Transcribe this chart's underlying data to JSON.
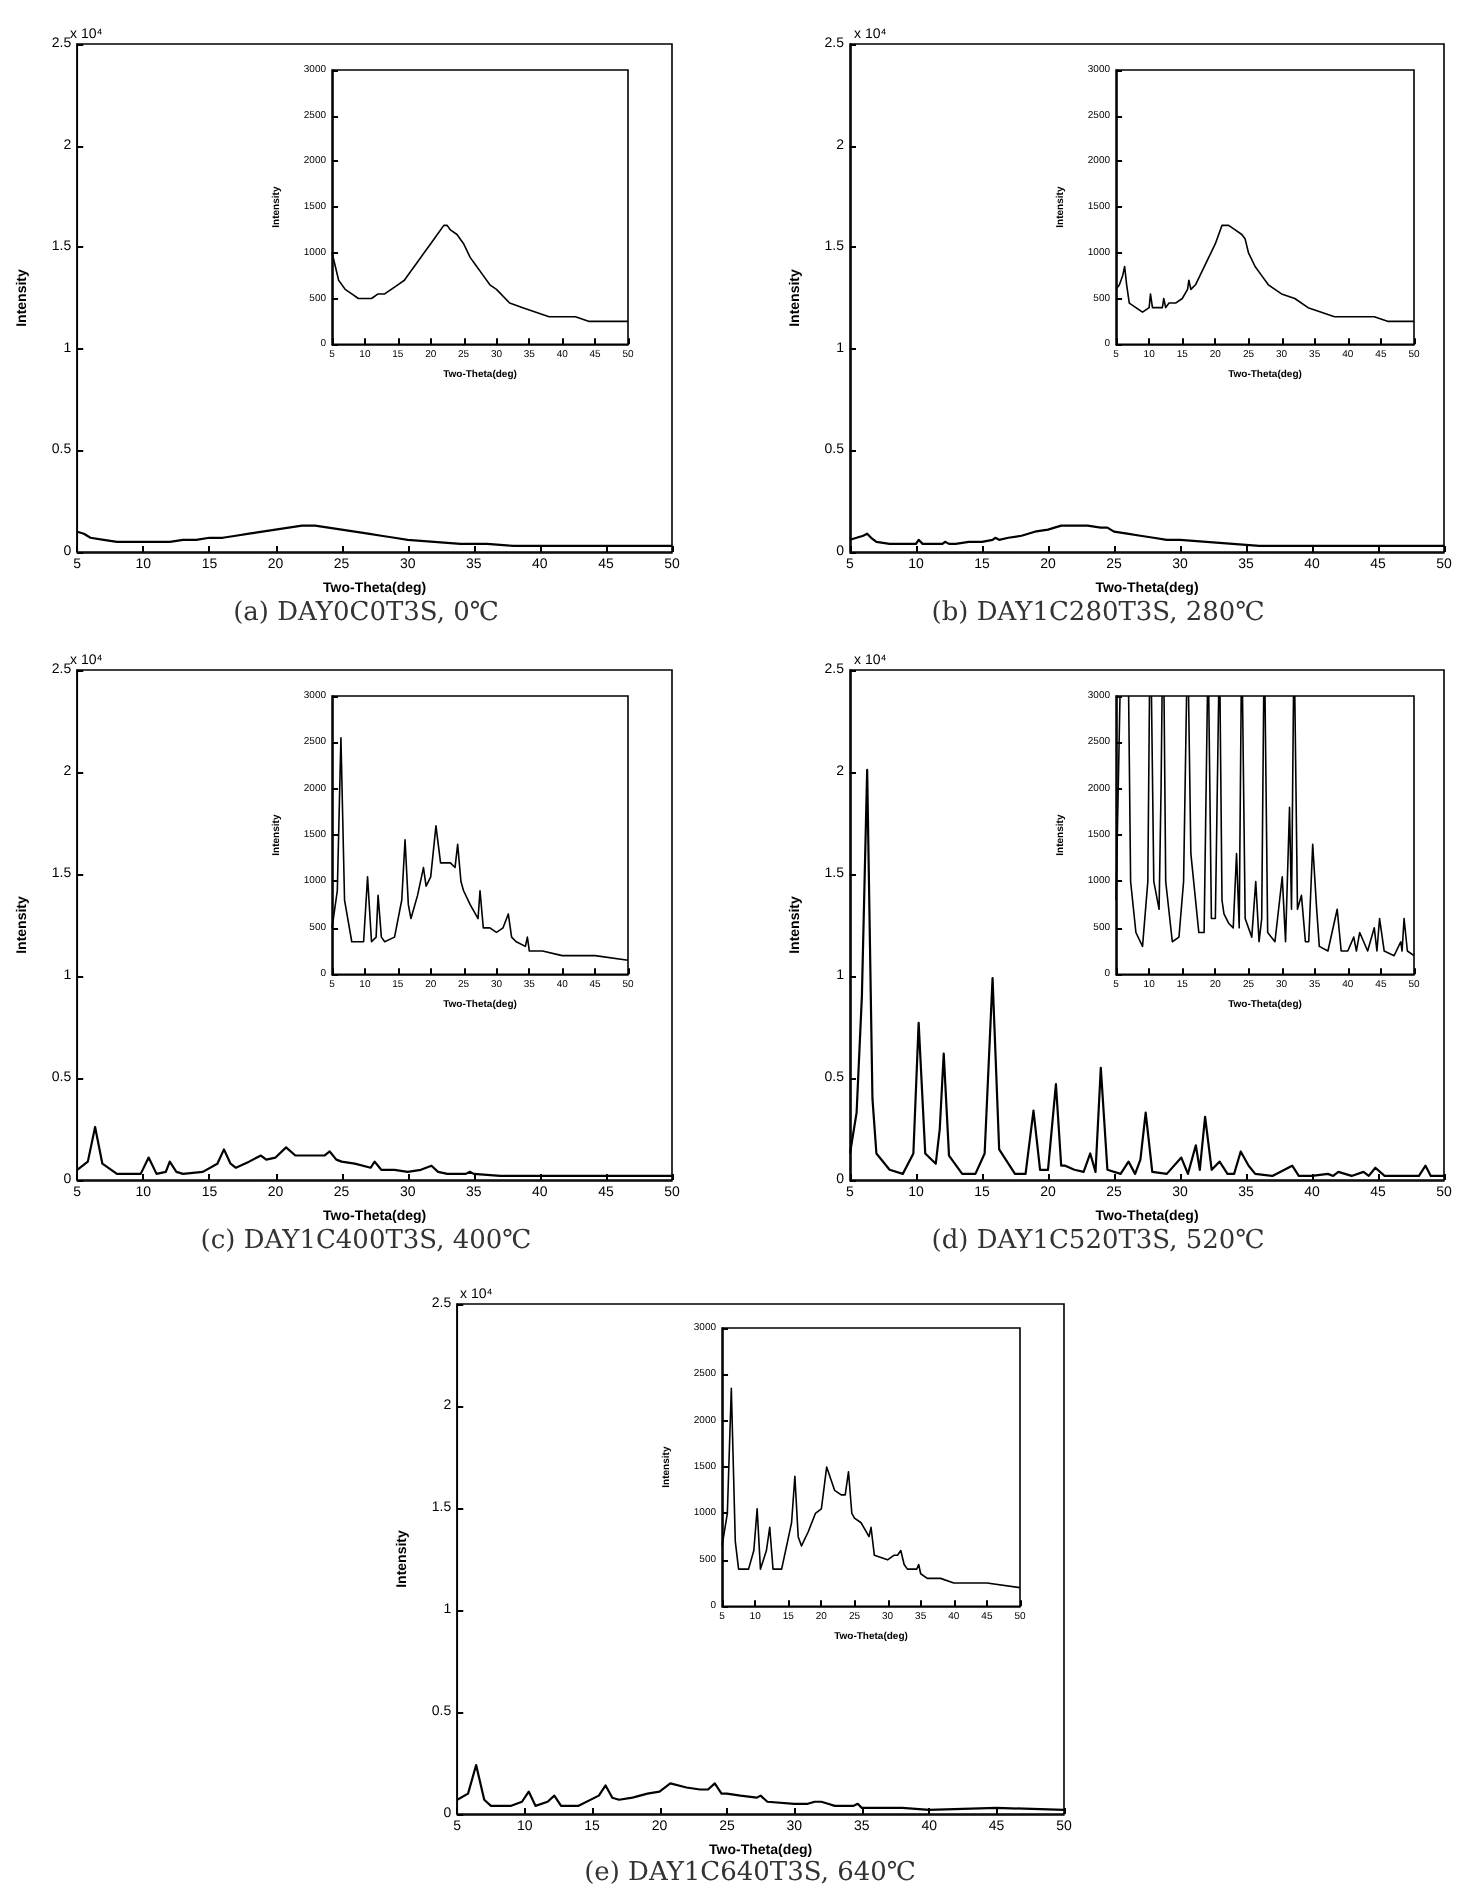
{
  "chart_data": [
    {
      "type": "line",
      "title": "(a) DAY0C0T3S, 0℃",
      "xlabel": "Two-Theta(deg)",
      "ylabel": "Intensity",
      "annotations": [
        "x 10⁴"
      ],
      "color": "#000000",
      "marker": "none",
      "xlim": [
        5,
        50
      ],
      "ylim": [
        0,
        2.5
      ],
      "xticks": [
        5,
        10,
        15,
        20,
        25,
        30,
        35,
        40,
        45,
        50
      ],
      "yticks": [
        0,
        0.5,
        1,
        1.5,
        2,
        2.5
      ],
      "x": [
        5,
        5.5,
        6,
        7,
        8,
        9,
        10,
        11,
        12,
        13,
        14,
        15,
        16,
        17,
        18,
        19,
        20,
        21,
        22,
        22.5,
        23,
        24,
        25,
        26,
        27,
        28,
        29,
        30,
        32,
        34,
        36,
        38,
        40,
        42,
        44,
        46,
        48,
        50
      ],
      "values": [
        0.1,
        0.09,
        0.07,
        0.06,
        0.05,
        0.05,
        0.05,
        0.05,
        0.05,
        0.06,
        0.06,
        0.07,
        0.07,
        0.08,
        0.09,
        0.1,
        0.11,
        0.12,
        0.13,
        0.13,
        0.13,
        0.12,
        0.11,
        0.1,
        0.09,
        0.08,
        0.07,
        0.06,
        0.05,
        0.04,
        0.04,
        0.03,
        0.03,
        0.03,
        0.03,
        0.03,
        0.03,
        0.03
      ]
    },
    {
      "type": "line",
      "xlabel": "Two-Theta(deg)",
      "ylabel": "Intensity",
      "color": "#000000",
      "marker": "none",
      "xlim": [
        5,
        50
      ],
      "ylim": [
        0,
        3000
      ],
      "xticks": [
        5,
        10,
        15,
        20,
        25,
        30,
        35,
        40,
        45,
        50
      ],
      "yticks": [
        0,
        500,
        1000,
        1500,
        2000,
        2500,
        3000
      ],
      "x": [
        5,
        5.5,
        6,
        7,
        8,
        9,
        10,
        11,
        12,
        13,
        14,
        15,
        16,
        17,
        18,
        19,
        20,
        21,
        22,
        22.5,
        23,
        24,
        25,
        26,
        27,
        28,
        29,
        30,
        32,
        34,
        36,
        38,
        40,
        42,
        44,
        46,
        48,
        50
      ],
      "values": [
        1000,
        850,
        700,
        600,
        550,
        500,
        500,
        500,
        550,
        550,
        600,
        650,
        700,
        800,
        900,
        1000,
        1100,
        1200,
        1300,
        1300,
        1250,
        1200,
        1100,
        950,
        850,
        750,
        650,
        600,
        450,
        400,
        350,
        300,
        300,
        300,
        250,
        250,
        250,
        250
      ]
    },
    {
      "type": "line",
      "title": "(b) DAY1C280T3S, 280℃",
      "xlabel": "Two-Theta(deg)",
      "ylabel": "Intensity",
      "annotations": [
        "x 10⁴"
      ],
      "color": "#000000",
      "marker": "none",
      "xlim": [
        5,
        50
      ],
      "ylim": [
        0,
        2.5
      ],
      "xticks": [
        5,
        10,
        15,
        20,
        25,
        30,
        35,
        40,
        45,
        50
      ],
      "yticks": [
        0,
        0.5,
        1,
        1.5,
        2,
        2.5
      ],
      "x": [
        5,
        5.5,
        6,
        6.3,
        6.6,
        7,
        8,
        9,
        10,
        10.2,
        10.5,
        11,
        12,
        12.2,
        12.5,
        13,
        14,
        15,
        15.8,
        16,
        16.3,
        17,
        18,
        19,
        20,
        21,
        22,
        23,
        24,
        24.5,
        25,
        26,
        27,
        28,
        29,
        30,
        32,
        34,
        36,
        38,
        40,
        42,
        44,
        46,
        48,
        50
      ],
      "values": [
        0.06,
        0.07,
        0.08,
        0.09,
        0.07,
        0.05,
        0.04,
        0.04,
        0.04,
        0.06,
        0.04,
        0.04,
        0.04,
        0.05,
        0.04,
        0.04,
        0.05,
        0.05,
        0.06,
        0.07,
        0.06,
        0.07,
        0.08,
        0.1,
        0.11,
        0.13,
        0.13,
        0.13,
        0.12,
        0.12,
        0.1,
        0.09,
        0.08,
        0.07,
        0.06,
        0.06,
        0.05,
        0.04,
        0.03,
        0.03,
        0.03,
        0.03,
        0.03,
        0.03,
        0.03,
        0.03
      ]
    },
    {
      "type": "line",
      "xlabel": "Two-Theta(deg)",
      "ylabel": "Intensity",
      "color": "#000000",
      "marker": "none",
      "xlim": [
        5,
        50
      ],
      "ylim": [
        0,
        3000
      ],
      "xticks": [
        5,
        10,
        15,
        20,
        25,
        30,
        35,
        40,
        45,
        50
      ],
      "yticks": [
        0,
        500,
        1000,
        1500,
        2000,
        2500,
        3000
      ],
      "x": [
        5,
        5.5,
        6,
        6.3,
        6.6,
        7,
        8,
        9,
        10,
        10.2,
        10.5,
        11,
        12,
        12.2,
        12.5,
        13,
        14,
        15,
        15.8,
        16,
        16.3,
        17,
        18,
        19,
        20,
        21,
        22,
        23,
        24,
        24.5,
        25,
        26,
        27,
        28,
        29,
        30,
        32,
        34,
        36,
        38,
        40,
        42,
        44,
        46,
        48,
        50
      ],
      "values": [
        600,
        650,
        750,
        850,
        650,
        450,
        400,
        350,
        400,
        550,
        400,
        400,
        400,
        500,
        400,
        450,
        450,
        500,
        600,
        700,
        600,
        650,
        800,
        950,
        1100,
        1300,
        1300,
        1250,
        1200,
        1150,
        1000,
        850,
        750,
        650,
        600,
        550,
        500,
        400,
        350,
        300,
        300,
        300,
        300,
        250,
        250,
        250
      ]
    },
    {
      "type": "line",
      "title": "(c) DAY1C400T3S, 400℃",
      "xlabel": "Two-Theta(deg)",
      "ylabel": "Intensity",
      "annotations": [
        "x 10⁴"
      ],
      "color": "#000000",
      "marker": "none",
      "xlim": [
        5,
        50
      ],
      "ylim": [
        0,
        2.5
      ],
      "xticks": [
        5,
        10,
        15,
        20,
        25,
        30,
        35,
        40,
        45,
        50
      ],
      "yticks": [
        0,
        0.5,
        1,
        1.5,
        2,
        2.5
      ],
      "x": [
        5,
        5.8,
        6.35,
        6.9,
        8,
        9.8,
        10.4,
        11,
        11.7,
        12,
        12.5,
        13,
        14.5,
        15.6,
        16.1,
        16.6,
        17,
        18,
        18.9,
        19.3,
        20,
        20.8,
        21.5,
        23,
        23.7,
        24.1,
        24.6,
        25,
        26,
        27.2,
        27.5,
        28,
        29,
        30,
        31,
        31.8,
        32.3,
        33,
        34.4,
        34.7,
        35,
        37,
        40,
        45,
        50
      ],
      "values": [
        0.05,
        0.09,
        0.26,
        0.08,
        0.03,
        0.03,
        0.11,
        0.03,
        0.04,
        0.09,
        0.04,
        0.03,
        0.04,
        0.08,
        0.15,
        0.08,
        0.06,
        0.09,
        0.12,
        0.1,
        0.11,
        0.16,
        0.12,
        0.12,
        0.12,
        0.14,
        0.1,
        0.09,
        0.08,
        0.06,
        0.09,
        0.05,
        0.05,
        0.04,
        0.05,
        0.07,
        0.04,
        0.03,
        0.03,
        0.04,
        0.03,
        0.02,
        0.02,
        0.02,
        0.02
      ]
    },
    {
      "type": "line",
      "xlabel": "Two-Theta(deg)",
      "ylabel": "Intensity",
      "color": "#000000",
      "marker": "none",
      "xlim": [
        5,
        50
      ],
      "ylim": [
        0,
        3000
      ],
      "xticks": [
        5,
        10,
        15,
        20,
        25,
        30,
        35,
        40,
        45,
        50
      ],
      "yticks": [
        0,
        500,
        1000,
        1500,
        2000,
        2500,
        3000
      ],
      "x": [
        5,
        5.8,
        6.35,
        6.9,
        8,
        9.8,
        10.4,
        11,
        11.7,
        12,
        12.5,
        13,
        14.5,
        15.6,
        16.1,
        16.6,
        17,
        18,
        18.9,
        19.3,
        20,
        20.8,
        21.5,
        23,
        23.7,
        24.1,
        24.6,
        25,
        26,
        27.2,
        27.5,
        28,
        29,
        30,
        31,
        31.8,
        32.3,
        33,
        34.4,
        34.7,
        35,
        37,
        40,
        45,
        50
      ],
      "values": [
        500,
        900,
        2550,
        800,
        350,
        350,
        1050,
        350,
        400,
        850,
        400,
        350,
        400,
        800,
        1450,
        750,
        600,
        850,
        1150,
        950,
        1050,
        1600,
        1200,
        1200,
        1150,
        1400,
        1000,
        900,
        750,
        600,
        900,
        500,
        500,
        450,
        500,
        650,
        400,
        350,
        300,
        400,
        250,
        250,
        200,
        200,
        150
      ]
    },
    {
      "type": "line",
      "title": "(d) DAY1C520T3S, 520℃",
      "xlabel": "Two-Theta(deg)",
      "ylabel": "Intensity",
      "annotations": [
        "x 10⁴"
      ],
      "color": "#000000",
      "marker": "none",
      "xlim": [
        5,
        50
      ],
      "ylim": [
        0,
        2.5
      ],
      "xticks": [
        5,
        10,
        15,
        20,
        25,
        30,
        35,
        40,
        45,
        50
      ],
      "yticks": [
        0,
        0.5,
        1,
        1.5,
        2,
        2.5
      ],
      "x": [
        5,
        5.5,
        5.9,
        6.3,
        6.7,
        7,
        8,
        9,
        9.8,
        10.2,
        10.7,
        11.5,
        11.8,
        12.1,
        12.5,
        13.5,
        14.5,
        15.2,
        15.8,
        16.3,
        17.5,
        18.3,
        18.9,
        19.4,
        20,
        20.6,
        21,
        21.3,
        22,
        22.7,
        23.2,
        23.6,
        24,
        24.5,
        25.5,
        26.1,
        26.6,
        27,
        27.4,
        27.9,
        29,
        30.1,
        30.6,
        31.2,
        31.5,
        31.9,
        32.4,
        33,
        33.6,
        34.1,
        34.6,
        35.2,
        35.7,
        37,
        38.5,
        39,
        40,
        41.2,
        41.6,
        42,
        43,
        43.9,
        44.3,
        44.8,
        45.5,
        47,
        48.1,
        48.6,
        49,
        50
      ],
      "values": [
        0.13,
        0.33,
        0.9,
        2.01,
        0.4,
        0.13,
        0.05,
        0.03,
        0.13,
        0.77,
        0.13,
        0.08,
        0.25,
        0.62,
        0.12,
        0.03,
        0.03,
        0.13,
        0.99,
        0.15,
        0.03,
        0.03,
        0.34,
        0.05,
        0.05,
        0.47,
        0.07,
        0.07,
        0.05,
        0.04,
        0.13,
        0.04,
        0.55,
        0.05,
        0.03,
        0.09,
        0.03,
        0.1,
        0.33,
        0.04,
        0.03,
        0.11,
        0.03,
        0.17,
        0.05,
        0.31,
        0.05,
        0.09,
        0.03,
        0.03,
        0.14,
        0.07,
        0.03,
        0.02,
        0.07,
        0.02,
        0.02,
        0.03,
        0.02,
        0.04,
        0.02,
        0.04,
        0.02,
        0.06,
        0.02,
        0.02,
        0.02,
        0.07,
        0.02,
        0.02
      ]
    },
    {
      "type": "line",
      "xlabel": "Two-Theta(deg)",
      "ylabel": "Intensity",
      "color": "#000000",
      "marker": "none",
      "xlim": [
        5,
        50
      ],
      "ylim": [
        0,
        3000
      ],
      "xticks": [
        5,
        10,
        15,
        20,
        25,
        30,
        35,
        40,
        45,
        50
      ],
      "yticks": [
        0,
        500,
        1000,
        1500,
        2000,
        2500,
        3000
      ],
      "x": [
        5,
        5.6,
        6.3,
        6.9,
        7.2,
        8,
        9,
        9.8,
        10.05,
        10.2,
        10.35,
        10.7,
        11.5,
        11.8,
        11.95,
        12.1,
        12.25,
        12.5,
        13.5,
        14.5,
        15.2,
        15.65,
        15.8,
        15.95,
        16.3,
        17.5,
        18.3,
        18.8,
        18.9,
        19,
        19.4,
        20,
        20.5,
        20.6,
        20.7,
        21,
        21.3,
        22,
        22.7,
        23.2,
        23.6,
        23.9,
        24,
        24.1,
        24.5,
        25.5,
        26.1,
        26.6,
        27,
        27.3,
        27.4,
        27.5,
        27.9,
        29,
        30.1,
        30.6,
        31.2,
        31.5,
        31.8,
        31.9,
        32,
        32.4,
        33,
        33.6,
        34.1,
        34.7,
        35.3,
        35.7,
        37,
        38.4,
        39,
        40,
        40.9,
        41.3,
        41.8,
        43,
        44,
        44.4,
        44.8,
        45.5,
        47,
        48,
        48.2,
        48.5,
        49,
        50
      ],
      "values": [
        800,
        3000,
        null,
        3000,
        1000,
        450,
        300,
        1000,
        3000,
        null,
        3000,
        1000,
        700,
        2000,
        3000,
        null,
        3000,
        1000,
        350,
        400,
        1000,
        3000,
        null,
        3000,
        1300,
        450,
        450,
        3000,
        null,
        3000,
        600,
        600,
        3000,
        null,
        3000,
        800,
        650,
        550,
        500,
        1300,
        500,
        3000,
        null,
        3000,
        600,
        400,
        1000,
        350,
        600,
        3000,
        null,
        3000,
        450,
        350,
        1050,
        350,
        1800,
        700,
        3000,
        null,
        3000,
        700,
        850,
        350,
        350,
        1400,
        700,
        300,
        250,
        700,
        250,
        250,
        400,
        250,
        450,
        250,
        500,
        250,
        600,
        250,
        200,
        350,
        250,
        600,
        250,
        200
      ]
    },
    {
      "type": "line",
      "title": "(e) DAY1C640T3S, 640℃",
      "xlabel": "Two-Theta(deg)",
      "ylabel": "Intensity",
      "annotations": [
        "x 10⁴"
      ],
      "color": "#000000",
      "marker": "none",
      "xlim": [
        5,
        50
      ],
      "ylim": [
        0,
        2.5
      ],
      "xticks": [
        5,
        10,
        15,
        20,
        25,
        30,
        35,
        40,
        45,
        50
      ],
      "yticks": [
        0,
        0.5,
        1,
        1.5,
        2,
        2.5
      ],
      "x": [
        5,
        5.8,
        6.4,
        7,
        7.5,
        9,
        9.8,
        10.3,
        10.8,
        11.7,
        12.2,
        12.7,
        14,
        15.5,
        16,
        16.5,
        17,
        18,
        19.1,
        20,
        20.8,
        22,
        23,
        23.6,
        24.1,
        24.6,
        25,
        26,
        27.2,
        27.5,
        28,
        30,
        31,
        31.5,
        32,
        32.5,
        33,
        34.4,
        34.7,
        35,
        36,
        38,
        40,
        45,
        50
      ],
      "values": [
        0.07,
        0.1,
        0.24,
        0.07,
        0.04,
        0.04,
        0.06,
        0.11,
        0.04,
        0.06,
        0.09,
        0.04,
        0.04,
        0.09,
        0.14,
        0.08,
        0.07,
        0.08,
        0.1,
        0.11,
        0.15,
        0.13,
        0.12,
        0.12,
        0.15,
        0.1,
        0.1,
        0.09,
        0.08,
        0.09,
        0.06,
        0.05,
        0.05,
        0.06,
        0.06,
        0.05,
        0.04,
        0.04,
        0.05,
        0.03,
        0.03,
        0.03,
        0.02,
        0.03,
        0.02
      ]
    },
    {
      "type": "line",
      "xlabel": "Two-Theta(deg)",
      "ylabel": "Intensity",
      "color": "#000000",
      "marker": "none",
      "xlim": [
        5,
        50
      ],
      "ylim": [
        0,
        3000
      ],
      "xticks": [
        5,
        10,
        15,
        20,
        25,
        30,
        35,
        40,
        45,
        50
      ],
      "yticks": [
        0,
        500,
        1000,
        1500,
        2000,
        2500,
        3000
      ],
      "x": [
        5,
        5.8,
        6.4,
        7,
        7.5,
        9,
        9.8,
        10.3,
        10.8,
        11.7,
        12.2,
        12.7,
        14,
        15.5,
        16,
        16.5,
        17,
        18,
        19.1,
        20,
        20.8,
        22,
        23,
        23.6,
        24.1,
        24.6,
        25,
        26,
        27.2,
        27.5,
        28,
        30,
        31,
        31.5,
        32,
        32.5,
        33,
        34.4,
        34.7,
        35,
        36,
        38,
        40,
        45,
        50
      ],
      "values": [
        650,
        1000,
        2350,
        700,
        400,
        400,
        600,
        1050,
        400,
        600,
        850,
        400,
        400,
        900,
        1400,
        750,
        650,
        800,
        1000,
        1050,
        1500,
        1250,
        1200,
        1200,
        1450,
        1000,
        950,
        900,
        750,
        850,
        550,
        500,
        550,
        550,
        600,
        450,
        400,
        400,
        450,
        350,
        300,
        300,
        250,
        250,
        200
      ]
    }
  ]
}
